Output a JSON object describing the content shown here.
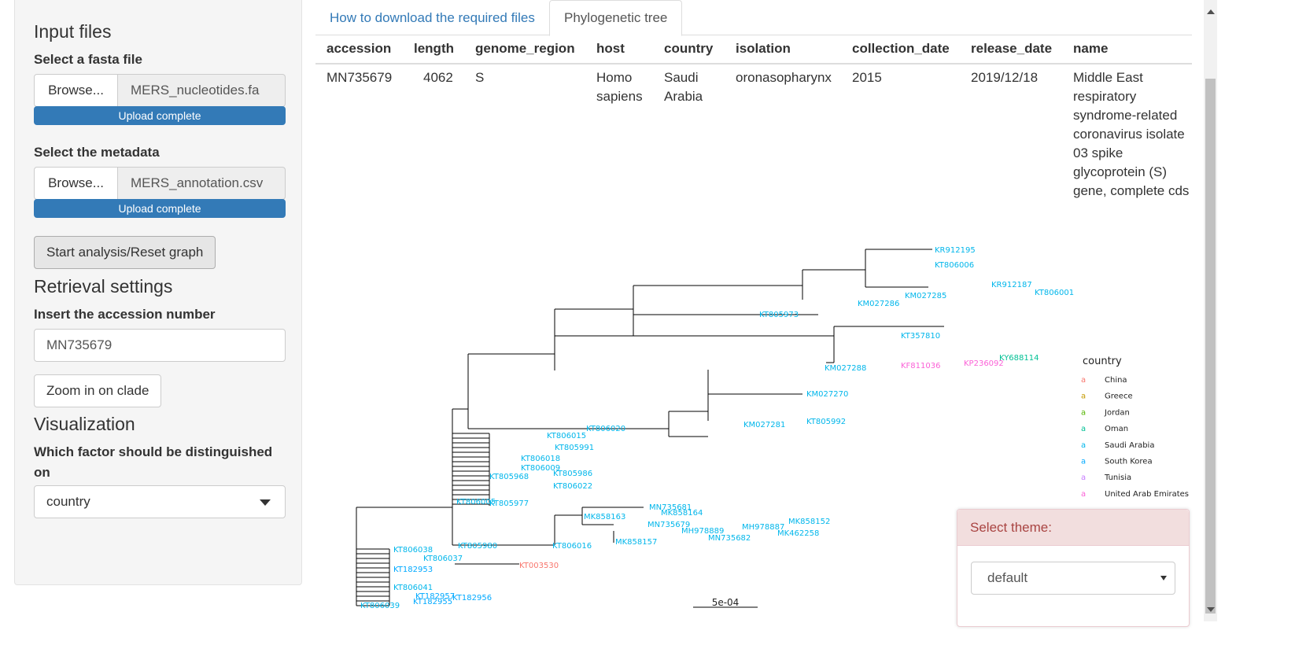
{
  "sidebar": {
    "input_files_heading": "Input files",
    "fasta_label": "Select a fasta file",
    "fasta_browse": "Browse...",
    "fasta_filename": "MERS_nucleotides.fa",
    "fasta_progress": "Upload complete",
    "metadata_label": "Select the metadata",
    "metadata_browse": "Browse...",
    "metadata_filename": "MERS_annotation.csv",
    "metadata_progress": "Upload complete",
    "start_button": "Start analysis/Reset graph",
    "retrieval_heading": "Retrieval settings",
    "accession_label": "Insert the accession number",
    "accession_value": "MN735679",
    "zoom_button": "Zoom in on clade",
    "visualization_heading": "Visualization",
    "factor_label": "Which factor should be distinguished on",
    "factor_value": "country"
  },
  "tabs": [
    {
      "label": "How to download the required files"
    },
    {
      "label": "Phylogenetic tree"
    }
  ],
  "table": {
    "headers": [
      "accession",
      "length",
      "genome_region",
      "host",
      "country",
      "isolation",
      "collection_date",
      "release_date",
      "name"
    ],
    "row": {
      "accession": "MN735679",
      "length": "4062",
      "genome_region": "S",
      "host": "Homo sapiens",
      "country": "Saudi Arabia",
      "isolation": "oronasopharynx",
      "collection_date": "2015",
      "release_date": "2019/12/18",
      "name": "Middle East respiratory syndrome-related coronavirus isolate 03 spike glycoprotein (S) gene, complete cds"
    }
  },
  "tree": {
    "scale_label": "5e-04",
    "legend_title": "country",
    "legend_glyph": "a",
    "legend": [
      {
        "name": "China",
        "color": "#f8766d"
      },
      {
        "name": "Greece",
        "color": "#c49a00"
      },
      {
        "name": "Jordan",
        "color": "#53b400"
      },
      {
        "name": "Oman",
        "color": "#00c094"
      },
      {
        "name": "Saudi Arabia",
        "color": "#00b6eb"
      },
      {
        "name": "South Korea",
        "color": "#00a9ff"
      },
      {
        "name": "Tunisia",
        "color": "#c77cff"
      },
      {
        "name": "United Arab Emirates",
        "color": "#fb61d7"
      }
    ],
    "tip_labels": [
      {
        "text": "KR912195",
        "country": "Saudi Arabia"
      },
      {
        "text": "KT806006",
        "country": "Saudi Arabia"
      },
      {
        "text": "KR912187",
        "country": "Saudi Arabia"
      },
      {
        "text": "KT806001",
        "country": "Saudi Arabia"
      },
      {
        "text": "KM027286",
        "country": "Saudi Arabia"
      },
      {
        "text": "KM027285",
        "country": "Saudi Arabia"
      },
      {
        "text": "KT805973",
        "country": "Saudi Arabia"
      },
      {
        "text": "KT357810",
        "country": "Saudi Arabia"
      },
      {
        "text": "KY688114",
        "country": "Oman"
      },
      {
        "text": "KM027288",
        "country": "Saudi Arabia"
      },
      {
        "text": "KF811036",
        "country": "United Arab Emirates"
      },
      {
        "text": "KP236092",
        "country": "United Arab Emirates"
      },
      {
        "text": "KM027270",
        "country": "Saudi Arabia"
      },
      {
        "text": "KM027281",
        "country": "Saudi Arabia"
      },
      {
        "text": "KT805992",
        "country": "Saudi Arabia"
      },
      {
        "text": "KT806020",
        "country": "Saudi Arabia"
      },
      {
        "text": "KT806015",
        "country": "Saudi Arabia"
      },
      {
        "text": "KT805991",
        "country": "Saudi Arabia"
      },
      {
        "text": "KT806018",
        "country": "Saudi Arabia"
      },
      {
        "text": "KT806009",
        "country": "Saudi Arabia"
      },
      {
        "text": "KT805986",
        "country": "Saudi Arabia"
      },
      {
        "text": "KT805968",
        "country": "Saudi Arabia"
      },
      {
        "text": "KT806022",
        "country": "Saudi Arabia"
      },
      {
        "text": "KT806005",
        "country": "Saudi Arabia"
      },
      {
        "text": "KT805977",
        "country": "Saudi Arabia"
      },
      {
        "text": "MN735681",
        "country": "Saudi Arabia"
      },
      {
        "text": "MK858164",
        "country": "Saudi Arabia"
      },
      {
        "text": "MK858163",
        "country": "Saudi Arabia"
      },
      {
        "text": "MN735679",
        "country": "Saudi Arabia"
      },
      {
        "text": "MH978889",
        "country": "Saudi Arabia"
      },
      {
        "text": "MH978887",
        "country": "Saudi Arabia"
      },
      {
        "text": "MK858152",
        "country": "Saudi Arabia"
      },
      {
        "text": "MK462258",
        "country": "Saudi Arabia"
      },
      {
        "text": "MN735682",
        "country": "Saudi Arabia"
      },
      {
        "text": "MK858157",
        "country": "Saudi Arabia"
      },
      {
        "text": "KT806016",
        "country": "Saudi Arabia"
      },
      {
        "text": "KT805980",
        "country": "Saudi Arabia"
      },
      {
        "text": "KT806038",
        "country": "Saudi Arabia"
      },
      {
        "text": "KT806037",
        "country": "Saudi Arabia"
      },
      {
        "text": "KT003530",
        "country": "China"
      },
      {
        "text": "KT182953",
        "country": "South Korea"
      },
      {
        "text": "KT806041",
        "country": "Saudi Arabia"
      },
      {
        "text": "KT182957",
        "country": "South Korea"
      },
      {
        "text": "KT182956",
        "country": "South Korea"
      },
      {
        "text": "KT182955",
        "country": "South Korea"
      },
      {
        "text": "KT806039",
        "country": "Saudi Arabia"
      }
    ]
  },
  "theme": {
    "label": "Select theme:",
    "value": "default"
  }
}
